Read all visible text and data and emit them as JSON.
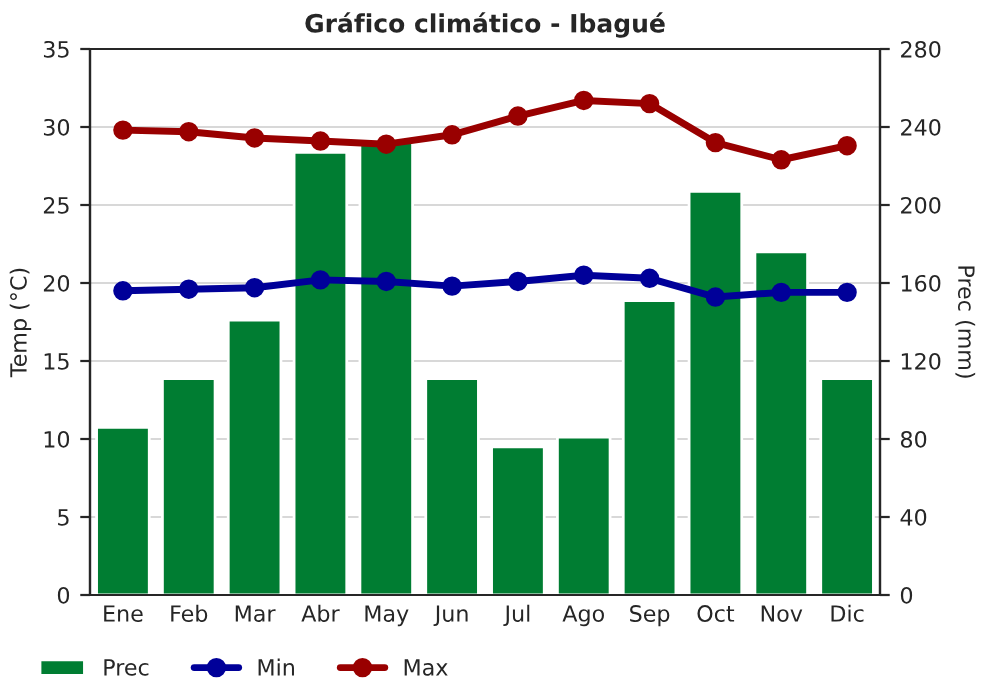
{
  "chart_data": {
    "type": "bar",
    "title": "Gráfico climático - Ibagué",
    "ylabel": "Temp (°C)",
    "y2label": "Prec (mm)",
    "categories": [
      "Ene",
      "Feb",
      "Mar",
      "Abr",
      "May",
      "Jun",
      "Jul",
      "Ago",
      "Sep",
      "Oct",
      "Nov",
      "Dic"
    ],
    "series": [
      {
        "name": "Prec",
        "axis": "y2",
        "color": "#007d32",
        "values": [
          86,
          111,
          141,
          227,
          232,
          111,
          76,
          81,
          151,
          207,
          176,
          111
        ]
      },
      {
        "name": "Min",
        "type": "line",
        "axis": "y",
        "color": "#000099",
        "values": [
          19.5,
          19.6,
          19.7,
          20.2,
          20.1,
          19.8,
          20.1,
          20.5,
          20.3,
          19.1,
          19.4,
          19.4
        ]
      },
      {
        "name": "Max",
        "type": "line",
        "axis": "y",
        "color": "#990000",
        "values": [
          29.8,
          29.7,
          29.3,
          29.1,
          28.9,
          29.5,
          30.7,
          31.7,
          31.5,
          29.0,
          27.9,
          28.8
        ]
      }
    ],
    "ylim": [
      0,
      35
    ],
    "yticks": [
      0,
      5,
      10,
      15,
      20,
      25,
      30,
      35
    ],
    "y2lim": [
      0,
      280
    ],
    "y2ticks": [
      0,
      40,
      80,
      120,
      160,
      200,
      240,
      280
    ],
    "grid": true,
    "legend": "bottom",
    "marker": "circle",
    "line_style": "solid"
  }
}
